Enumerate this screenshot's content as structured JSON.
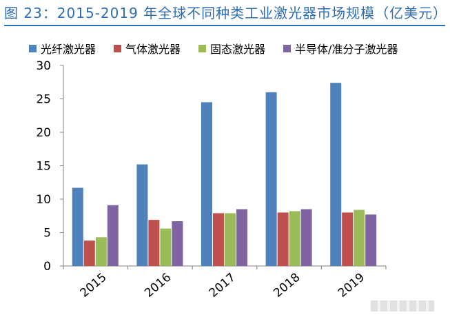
{
  "figure": {
    "title": "图 23：2015-2019 年全球不同种类工业激光器市场规模（亿美元）"
  },
  "colors": {
    "title": "#2e6db4",
    "series": [
      "#4f81bd",
      "#c0504d",
      "#9bbb59",
      "#8064a2"
    ]
  },
  "chart_data": {
    "type": "bar",
    "title": "",
    "xlabel": "",
    "ylabel": "",
    "categories": [
      "2015",
      "2016",
      "2017",
      "2018",
      "2019"
    ],
    "ylim": [
      0,
      30
    ],
    "yticks": [
      0,
      5,
      10,
      15,
      20,
      25,
      30
    ],
    "grid": false,
    "legend_position": "top",
    "series": [
      {
        "name": "光纤激光器",
        "values": [
          11.7,
          15.2,
          24.5,
          26.0,
          27.4
        ]
      },
      {
        "name": "气体激光器",
        "values": [
          3.8,
          6.9,
          7.9,
          8.0,
          8.0
        ]
      },
      {
        "name": "固态激光器",
        "values": [
          4.3,
          5.6,
          7.9,
          8.2,
          8.4
        ]
      },
      {
        "name": "半导体/准分子激光器",
        "values": [
          9.1,
          6.7,
          8.5,
          8.5,
          7.7
        ]
      }
    ]
  }
}
